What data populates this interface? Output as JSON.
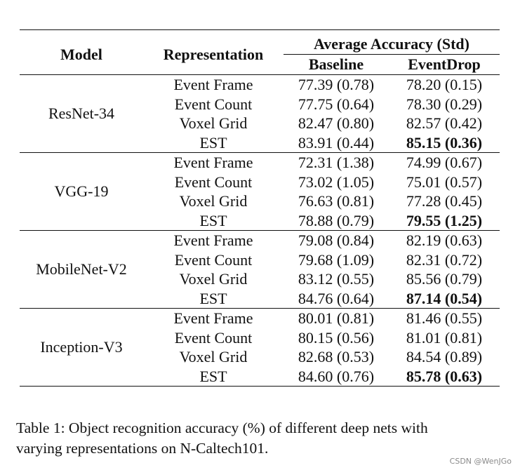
{
  "table": {
    "headers": {
      "model": "Model",
      "representation": "Representation",
      "average_accuracy": "Average Accuracy (Std)",
      "baseline": "Baseline",
      "eventdrop": "EventDrop"
    },
    "groups": [
      {
        "model": "ResNet-34",
        "rows": [
          {
            "rep": "Event Frame",
            "baseline": "77.39 (0.78)",
            "eventdrop": "78.20 (0.15)"
          },
          {
            "rep": "Event Count",
            "baseline": "77.75 (0.64)",
            "eventdrop": "78.30 (0.29)"
          },
          {
            "rep": "Voxel Grid",
            "baseline": "82.47 (0.80)",
            "eventdrop": "82.57 (0.42)"
          },
          {
            "rep": "EST",
            "baseline": "83.91 (0.44)",
            "eventdrop": "85.15 (0.36)"
          }
        ]
      },
      {
        "model": "VGG-19",
        "rows": [
          {
            "rep": "Event Frame",
            "baseline": "72.31 (1.38)",
            "eventdrop": "74.99 (0.67)"
          },
          {
            "rep": "Event Count",
            "baseline": "73.02 (1.05)",
            "eventdrop": "75.01 (0.57)"
          },
          {
            "rep": "Voxel Grid",
            "baseline": "76.63 (0.81)",
            "eventdrop": "77.28 (0.45)"
          },
          {
            "rep": "EST",
            "baseline": "78.88 (0.79)",
            "eventdrop": "79.55 (1.25)"
          }
        ]
      },
      {
        "model": "MobileNet-V2",
        "rows": [
          {
            "rep": "Event Frame",
            "baseline": "79.08 (0.84)",
            "eventdrop": "82.19 (0.63)"
          },
          {
            "rep": "Event Count",
            "baseline": "79.68 (1.09)",
            "eventdrop": "82.31 (0.72)"
          },
          {
            "rep": "Voxel Grid",
            "baseline": "83.12 (0.55)",
            "eventdrop": "85.56 (0.79)"
          },
          {
            "rep": "EST",
            "baseline": "84.76 (0.64)",
            "eventdrop": "87.14 (0.54)"
          }
        ]
      },
      {
        "model": "Inception-V3",
        "rows": [
          {
            "rep": "Event Frame",
            "baseline": "80.01 (0.81)",
            "eventdrop": "81.46 (0.55)"
          },
          {
            "rep": "Event Count",
            "baseline": "80.15 (0.56)",
            "eventdrop": "81.01 (0.81)"
          },
          {
            "rep": "Voxel Grid",
            "baseline": "82.68 (0.53)",
            "eventdrop": "84.54 (0.89)"
          },
          {
            "rep": "EST",
            "baseline": "84.60 (0.76)",
            "eventdrop": "85.78 (0.63)"
          }
        ]
      }
    ]
  },
  "caption": {
    "line1": "Table 1:  Object recognition accuracy (%) of different deep nets with",
    "line2": "varying representations on N-Caltech101."
  },
  "watermark": "CSDN @WenJGo"
}
